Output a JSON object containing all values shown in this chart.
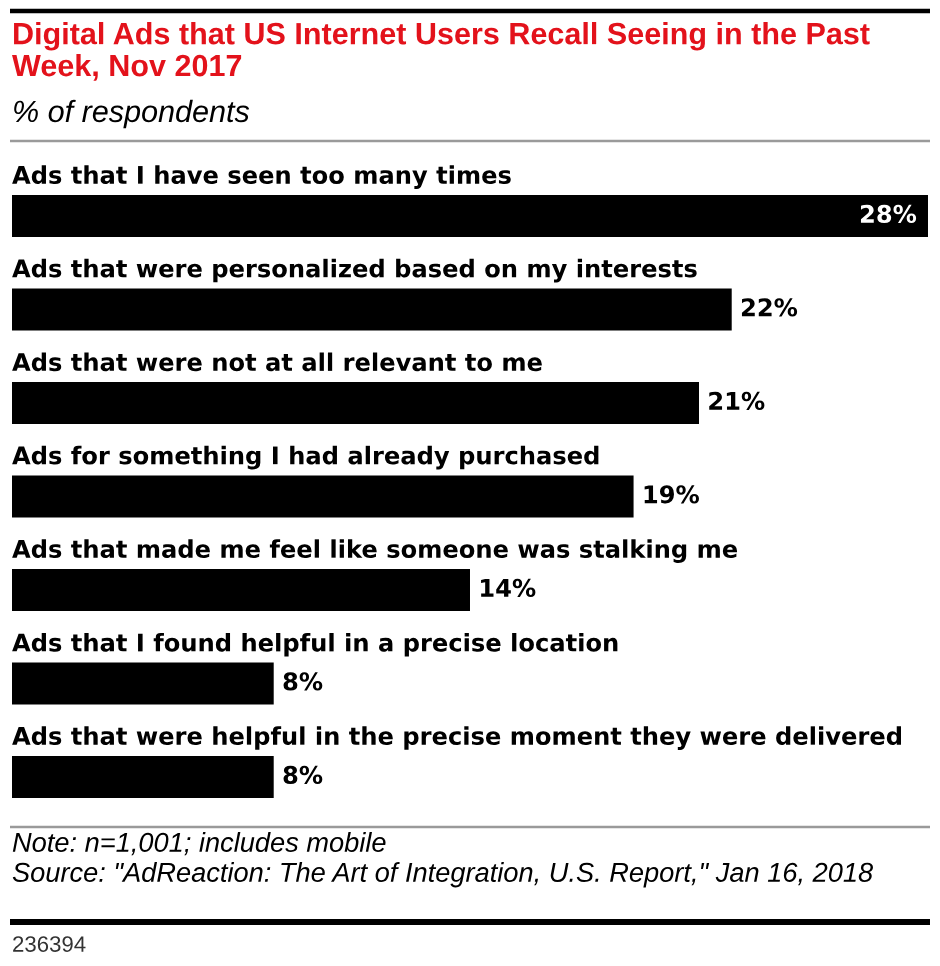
{
  "chart_data": {
    "type": "bar",
    "orientation": "horizontal",
    "title": "Digital Ads that US Internet Users Recall Seeing in the Past Week, Nov 2017",
    "subtitle": "% of respondents",
    "categories": [
      "Ads that I have seen too many times",
      "Ads that were personalized based on my interests",
      "Ads that were not at all relevant to me",
      "Ads for something I had already purchased",
      "Ads that made me feel like someone was stalking me",
      "Ads that I found helpful in a precise location",
      "Ads that were helpful in the precise moment they were delivered"
    ],
    "values": [
      28,
      22,
      21,
      19,
      14,
      8,
      8
    ],
    "color": "#000000",
    "value_labels": [
      "28%",
      "22%",
      "21%",
      "19%",
      "14%",
      "8%",
      "8%"
    ],
    "annotations": [
      "Note: n=1,001; includes mobile",
      "Source: \"AdReaction: The Art of Integration, U.S. Report,\" Jan 16, 2018",
      "236394"
    ]
  }
}
